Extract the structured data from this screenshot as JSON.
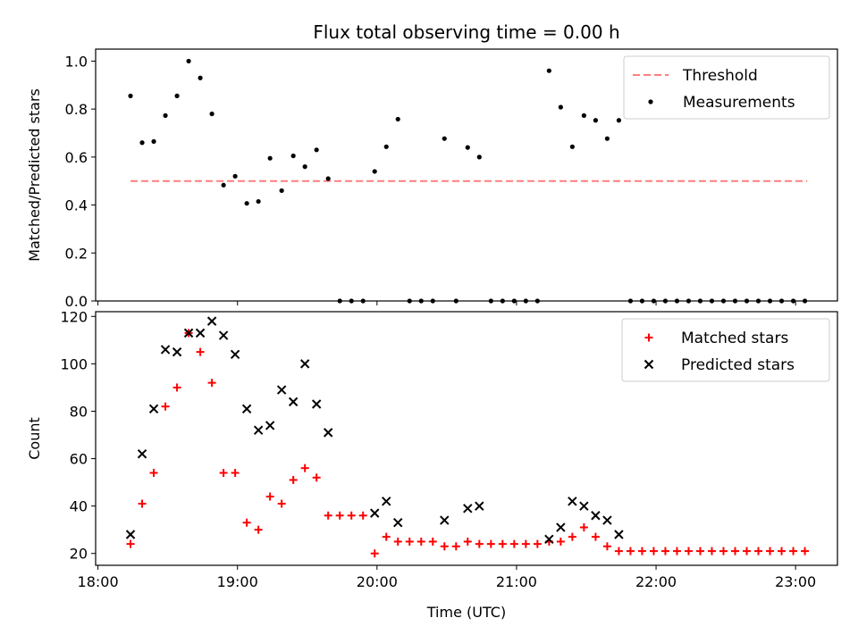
{
  "title": "Flux total observing time = 0.00 h",
  "chart_data": [
    {
      "type": "scatter",
      "ylabel": "Matched/Predicted stars",
      "xlim": [
        "17:59",
        "23:18"
      ],
      "ylim": [
        0,
        1.05
      ],
      "yticks": [
        "0.0",
        "0.2",
        "0.4",
        "0.6",
        "0.8",
        "1.0"
      ],
      "threshold": {
        "name": "Threshold",
        "value": 0.5,
        "x_range": [
          "18:14",
          "23:05"
        ],
        "color": "#ff7f7f"
      },
      "legend": {
        "placement": "top-right",
        "entries": [
          "Threshold",
          "Measurements"
        ]
      },
      "series": [
        {
          "name": "Measurements",
          "color": "#000000",
          "marker": "dot",
          "points": [
            [
              "18:14",
              0.855
            ],
            [
              "18:19",
              0.66
            ],
            [
              "18:24",
              0.665
            ],
            [
              "18:29",
              0.773
            ],
            [
              "18:34",
              0.855
            ],
            [
              "18:39",
              1.0
            ],
            [
              "18:44",
              0.93
            ],
            [
              "18:49",
              0.78
            ],
            [
              "18:54",
              0.483
            ],
            [
              "18:59",
              0.52
            ],
            [
              "19:04",
              0.407
            ],
            [
              "19:09",
              0.415
            ],
            [
              "19:14",
              0.595
            ],
            [
              "19:19",
              0.46
            ],
            [
              "19:24",
              0.605
            ],
            [
              "19:29",
              0.56
            ],
            [
              "19:34",
              0.63
            ],
            [
              "19:39",
              0.51
            ],
            [
              "19:44",
              0.0
            ],
            [
              "19:49",
              0.0
            ],
            [
              "19:54",
              0.0
            ],
            [
              "19:59",
              0.54
            ],
            [
              "20:04",
              0.643
            ],
            [
              "20:09",
              0.758
            ],
            [
              "20:14",
              0.0
            ],
            [
              "20:19",
              0.0
            ],
            [
              "20:24",
              0.0
            ],
            [
              "20:29",
              0.677
            ],
            [
              "20:34",
              0.0
            ],
            [
              "20:39",
              0.64
            ],
            [
              "20:44",
              0.6
            ],
            [
              "20:49",
              0.0
            ],
            [
              "20:54",
              0.0
            ],
            [
              "20:59",
              0.0
            ],
            [
              "21:04",
              0.0
            ],
            [
              "21:09",
              0.0
            ],
            [
              "21:14",
              0.96
            ],
            [
              "21:19",
              0.808
            ],
            [
              "21:24",
              0.643
            ],
            [
              "21:29",
              0.773
            ],
            [
              "21:34",
              0.753
            ],
            [
              "21:39",
              0.677
            ],
            [
              "21:44",
              0.753
            ],
            [
              "21:49",
              0.0
            ],
            [
              "21:54",
              0.0
            ],
            [
              "21:59",
              0.0
            ],
            [
              "22:04",
              0.0
            ],
            [
              "22:09",
              0.0
            ],
            [
              "22:14",
              0.0
            ],
            [
              "22:19",
              0.0
            ],
            [
              "22:24",
              0.0
            ],
            [
              "22:29",
              0.0
            ],
            [
              "22:34",
              0.0
            ],
            [
              "22:39",
              0.0
            ],
            [
              "22:44",
              0.0
            ],
            [
              "22:49",
              0.0
            ],
            [
              "22:54",
              0.0
            ],
            [
              "22:59",
              0.0
            ],
            [
              "23:04",
              0.0
            ]
          ]
        }
      ]
    },
    {
      "type": "scatter",
      "xlabel": "Time (UTC)",
      "ylabel": "Count",
      "xlim": [
        "17:59",
        "23:18"
      ],
      "ylim": [
        15,
        122
      ],
      "xticks": [
        "18:00",
        "19:00",
        "20:00",
        "21:00",
        "22:00",
        "23:00"
      ],
      "yticks": [
        "20",
        "40",
        "60",
        "80",
        "100",
        "120"
      ],
      "legend": {
        "placement": "top-right",
        "entries": [
          "Matched stars",
          "Predicted stars"
        ]
      },
      "series": [
        {
          "name": "Matched stars",
          "color": "#ff0000",
          "marker": "plus",
          "points": [
            [
              "18:14",
              24
            ],
            [
              "18:19",
              41
            ],
            [
              "18:24",
              54
            ],
            [
              "18:29",
              82
            ],
            [
              "18:34",
              90
            ],
            [
              "18:39",
              113
            ],
            [
              "18:44",
              105
            ],
            [
              "18:49",
              92
            ],
            [
              "18:54",
              54
            ],
            [
              "18:59",
              54
            ],
            [
              "19:04",
              33
            ],
            [
              "19:09",
              30
            ],
            [
              "19:14",
              44
            ],
            [
              "19:19",
              41
            ],
            [
              "19:24",
              51
            ],
            [
              "19:29",
              56
            ],
            [
              "19:34",
              52
            ],
            [
              "19:39",
              36
            ],
            [
              "19:44",
              36
            ],
            [
              "19:49",
              36
            ],
            [
              "19:54",
              36
            ],
            [
              "19:59",
              20
            ],
            [
              "20:04",
              27
            ],
            [
              "20:09",
              25
            ],
            [
              "20:14",
              25
            ],
            [
              "20:19",
              25
            ],
            [
              "20:24",
              25
            ],
            [
              "20:29",
              23
            ],
            [
              "20:34",
              23
            ],
            [
              "20:39",
              25
            ],
            [
              "20:44",
              24
            ],
            [
              "20:49",
              24
            ],
            [
              "20:54",
              24
            ],
            [
              "20:59",
              24
            ],
            [
              "21:04",
              24
            ],
            [
              "21:09",
              24
            ],
            [
              "21:14",
              25
            ],
            [
              "21:19",
              25
            ],
            [
              "21:24",
              27
            ],
            [
              "21:29",
              31
            ],
            [
              "21:34",
              27
            ],
            [
              "21:39",
              23
            ],
            [
              "21:44",
              21
            ],
            [
              "21:49",
              21
            ],
            [
              "21:54",
              21
            ],
            [
              "21:59",
              21
            ],
            [
              "22:04",
              21
            ],
            [
              "22:09",
              21
            ],
            [
              "22:14",
              21
            ],
            [
              "22:19",
              21
            ],
            [
              "22:24",
              21
            ],
            [
              "22:29",
              21
            ],
            [
              "22:34",
              21
            ],
            [
              "22:39",
              21
            ],
            [
              "22:44",
              21
            ],
            [
              "22:49",
              21
            ],
            [
              "22:54",
              21
            ],
            [
              "22:59",
              21
            ],
            [
              "23:04",
              21
            ]
          ]
        },
        {
          "name": "Predicted stars",
          "color": "#000000",
          "marker": "x",
          "points": [
            [
              "18:14",
              28
            ],
            [
              "18:19",
              62
            ],
            [
              "18:24",
              81
            ],
            [
              "18:29",
              106
            ],
            [
              "18:34",
              105
            ],
            [
              "18:39",
              113
            ],
            [
              "18:44",
              113
            ],
            [
              "18:49",
              118
            ],
            [
              "18:54",
              112
            ],
            [
              "18:59",
              104
            ],
            [
              "19:04",
              81
            ],
            [
              "19:09",
              72
            ],
            [
              "19:14",
              74
            ],
            [
              "19:19",
              89
            ],
            [
              "19:24",
              84
            ],
            [
              "19:29",
              100
            ],
            [
              "19:34",
              83
            ],
            [
              "19:39",
              71
            ],
            [
              "19:59",
              37
            ],
            [
              "20:04",
              42
            ],
            [
              "20:09",
              33
            ],
            [
              "20:29",
              34
            ],
            [
              "20:39",
              39
            ],
            [
              "20:44",
              40
            ],
            [
              "21:14",
              26
            ],
            [
              "21:19",
              31
            ],
            [
              "21:24",
              42
            ],
            [
              "21:29",
              40
            ],
            [
              "21:34",
              36
            ],
            [
              "21:39",
              34
            ],
            [
              "21:44",
              28
            ]
          ]
        }
      ]
    }
  ]
}
